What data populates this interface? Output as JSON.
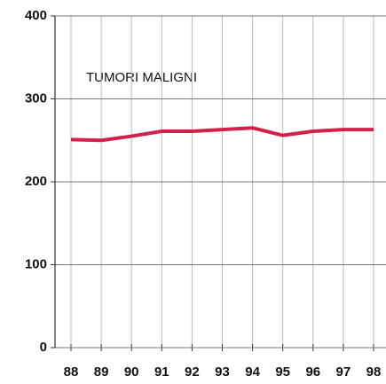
{
  "chart_data": {
    "type": "line",
    "title": "TUMORI MALIGNI",
    "categories": [
      "88",
      "89",
      "90",
      "91",
      "92",
      "93",
      "94",
      "95",
      "96",
      "97",
      "98"
    ],
    "series": [
      {
        "name": "TUMORI MALIGNI",
        "color": "#d2204a",
        "values": [
          251,
          250,
          255,
          261,
          261,
          263,
          265,
          256,
          261,
          263,
          263
        ]
      }
    ],
    "ylim": [
      0,
      400
    ],
    "yticks": [
      0,
      100,
      200,
      300,
      400
    ],
    "grid": true
  }
}
